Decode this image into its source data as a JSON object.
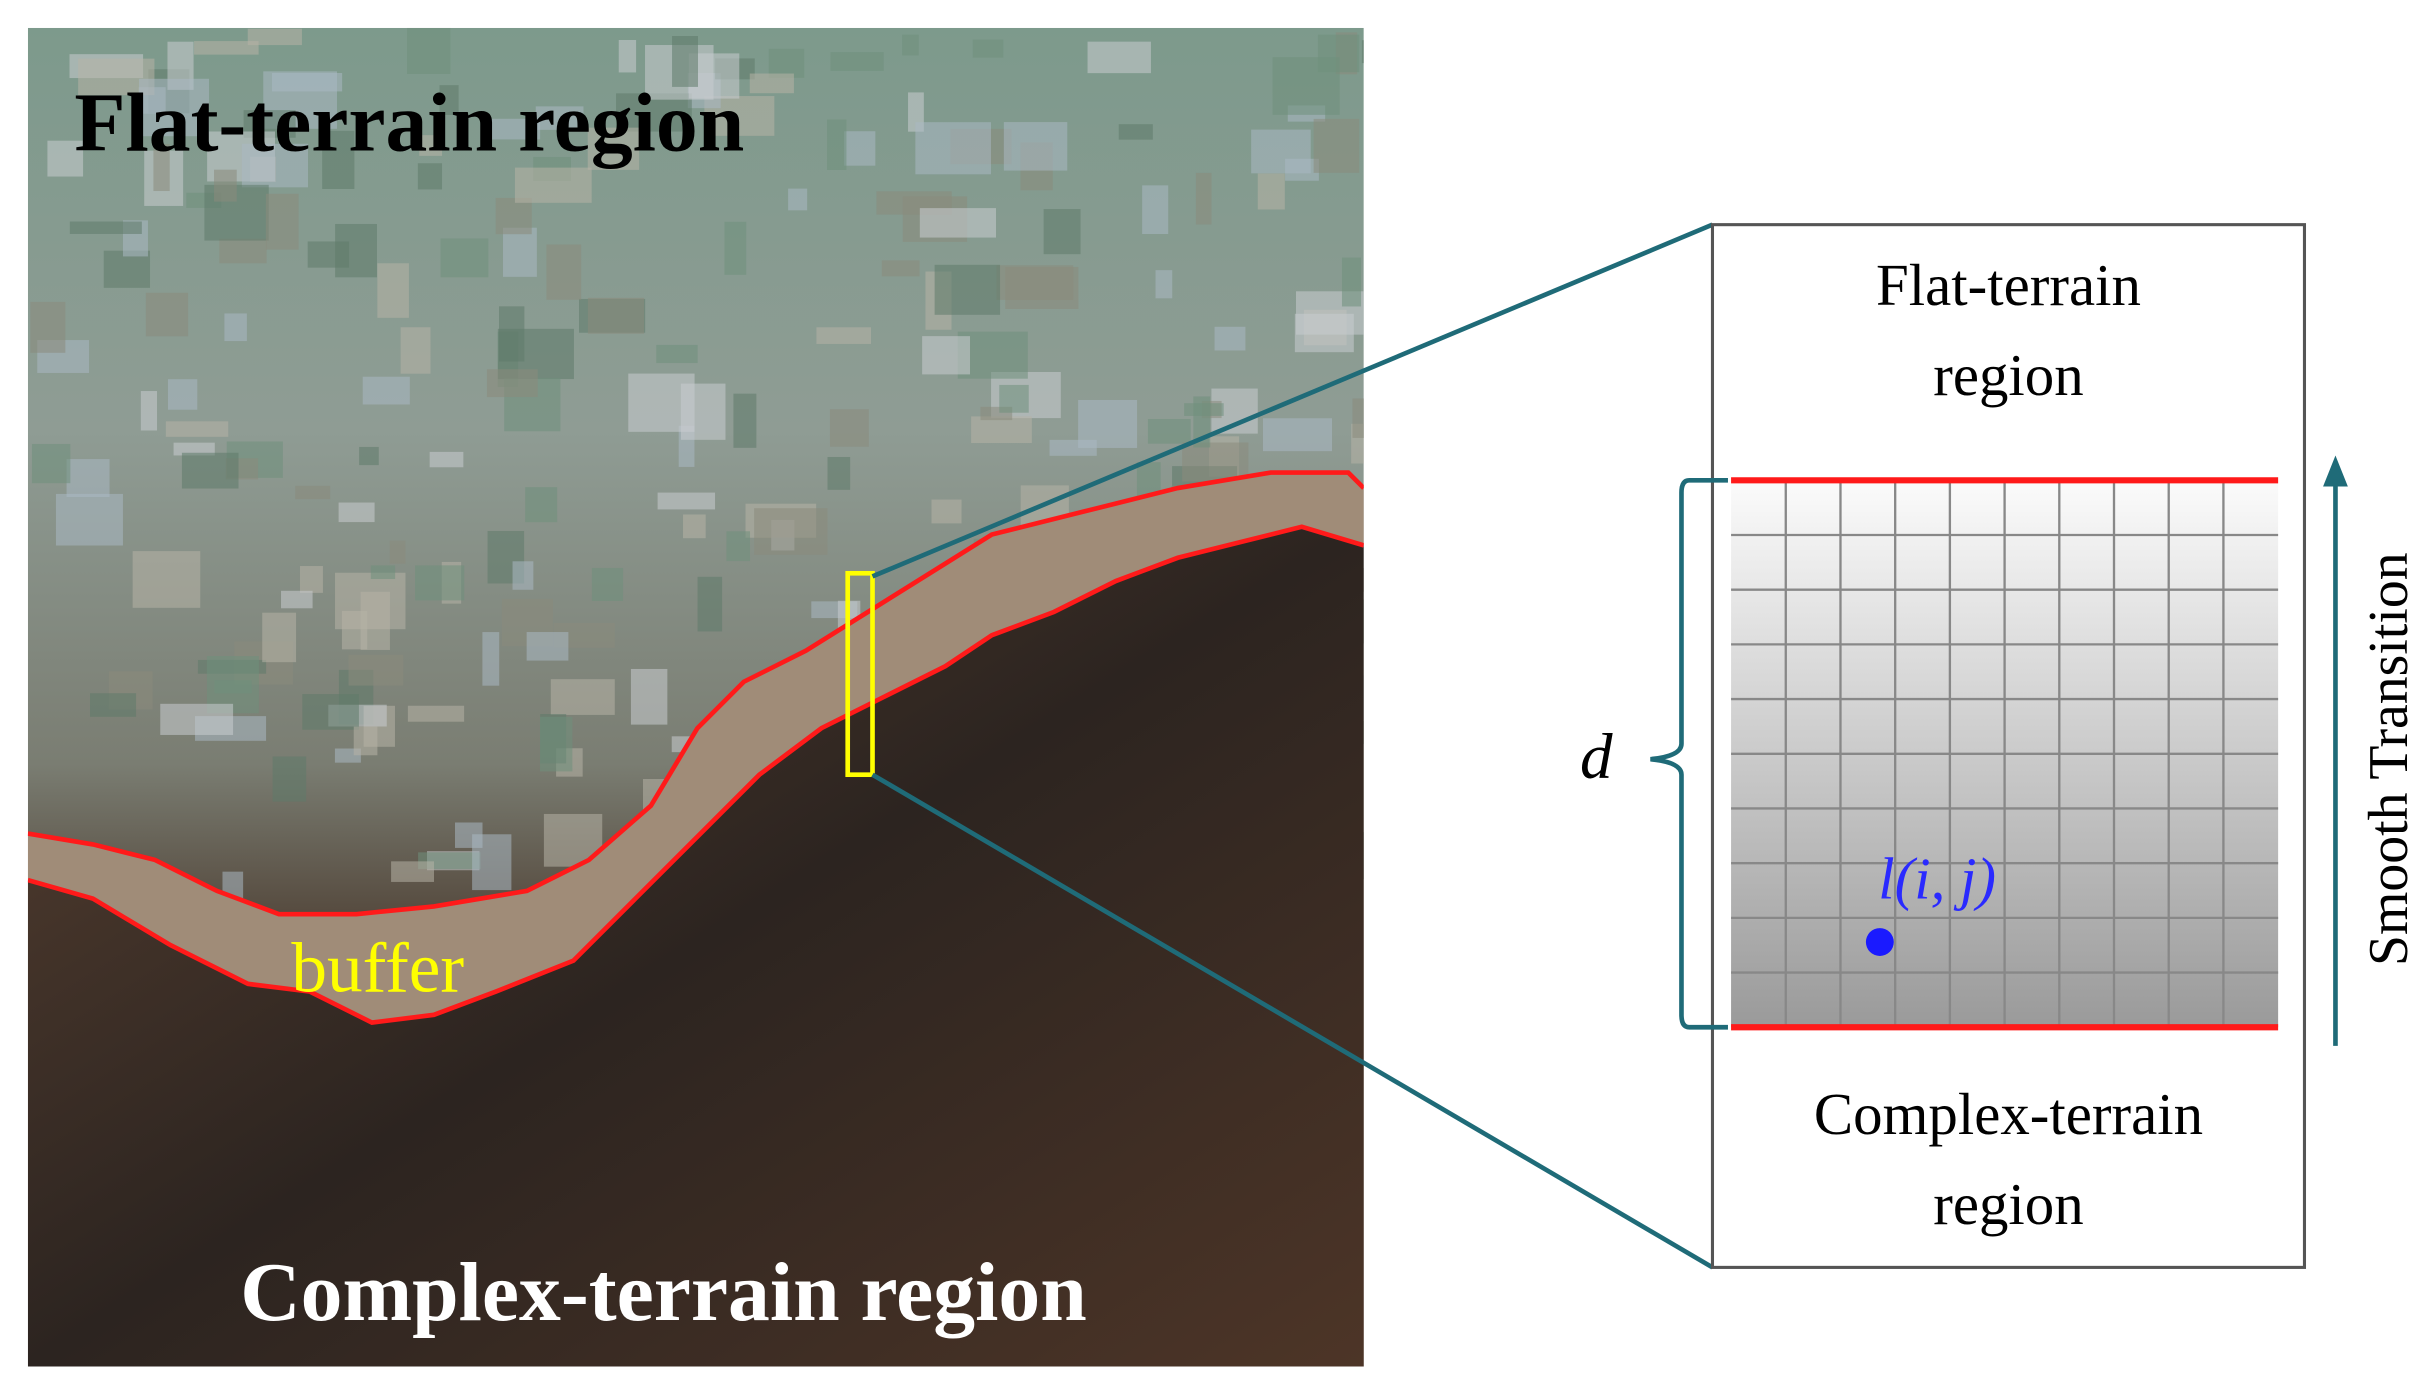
{
  "map": {
    "top_label": "Flat-terrain region",
    "buffer_label": "buffer",
    "bottom_label": "Complex-terrain region"
  },
  "inset": {
    "top_label": [
      "Flat-terrain",
      "region"
    ],
    "bottom_label": [
      "Complex-terrain",
      "region"
    ],
    "width_symbol": "d",
    "point_label": "l(i, j)",
    "arrow_label": "Smooth Transition"
  }
}
